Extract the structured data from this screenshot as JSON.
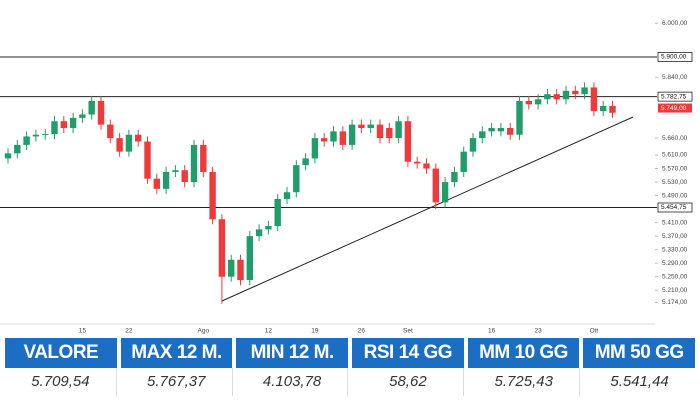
{
  "chart_data": {
    "type": "candlestick",
    "categories": [
      null,
      null,
      null,
      null,
      null,
      null,
      null,
      null,
      "15",
      null,
      null,
      null,
      null,
      "22",
      null,
      null,
      null,
      null,
      null,
      null,
      null,
      "Ago",
      null,
      null,
      null,
      null,
      null,
      null,
      "12",
      null,
      null,
      null,
      null,
      "19",
      null,
      null,
      null,
      null,
      "26",
      null,
      null,
      null,
      null,
      "Set",
      null,
      null,
      null,
      null,
      null,
      null,
      null,
      null,
      "16",
      null,
      null,
      null,
      null,
      "23",
      null,
      null,
      null,
      null,
      null,
      "Ott",
      null,
      null
    ],
    "open": [
      5600,
      5615,
      5640,
      5665,
      5670,
      5672,
      5710,
      5690,
      5720,
      5730,
      5770,
      5700,
      5660,
      5620,
      5670,
      5650,
      5540,
      5510,
      5560,
      5565,
      5530,
      5640,
      5560,
      5420,
      5250,
      5300,
      5240,
      5370,
      5390,
      5400,
      5480,
      5500,
      5580,
      5600,
      5660,
      5650,
      5680,
      5640,
      5700,
      5690,
      5700,
      5690,
      5660,
      5710,
      5590,
      5585,
      5570,
      5470,
      5530,
      5560,
      5620,
      5660,
      5680,
      5680,
      5690,
      5670,
      5770,
      5760,
      5775,
      5790,
      5775,
      5800,
      5790,
      5810,
      5740,
      5755
    ],
    "high": [
      5630,
      5655,
      5680,
      5685,
      5687,
      5725,
      5725,
      5735,
      5745,
      5785,
      5785,
      5715,
      5675,
      5685,
      5685,
      5665,
      5555,
      5575,
      5580,
      5580,
      5655,
      5655,
      5575,
      5435,
      5315,
      5315,
      5385,
      5405,
      5415,
      5495,
      5515,
      5595,
      5615,
      5675,
      5675,
      5695,
      5695,
      5715,
      5715,
      5715,
      5715,
      5705,
      5725,
      5725,
      5605,
      5600,
      5585,
      5545,
      5575,
      5635,
      5675,
      5695,
      5705,
      5705,
      5705,
      5785,
      5785,
      5790,
      5805,
      5805,
      5815,
      5815,
      5825,
      5825,
      5770,
      5770
    ],
    "low": [
      5585,
      5600,
      5625,
      5650,
      5655,
      5657,
      5675,
      5675,
      5705,
      5715,
      5685,
      5645,
      5605,
      5605,
      5635,
      5525,
      5495,
      5495,
      5545,
      5515,
      5515,
      5545,
      5405,
      5170,
      5235,
      5225,
      5225,
      5355,
      5375,
      5385,
      5465,
      5485,
      5565,
      5585,
      5635,
      5635,
      5625,
      5625,
      5675,
      5675,
      5645,
      5645,
      5645,
      5575,
      5570,
      5555,
      5450,
      5455,
      5515,
      5545,
      5605,
      5645,
      5665,
      5665,
      5655,
      5655,
      5745,
      5745,
      5760,
      5760,
      5760,
      5775,
      5775,
      5725,
      5725,
      5720
    ],
    "close": [
      5615,
      5640,
      5665,
      5670,
      5672,
      5710,
      5690,
      5720,
      5730,
      5770,
      5700,
      5660,
      5620,
      5670,
      5650,
      5540,
      5510,
      5560,
      5565,
      5530,
      5640,
      5560,
      5420,
      5250,
      5300,
      5240,
      5370,
      5390,
      5400,
      5480,
      5500,
      5580,
      5600,
      5660,
      5650,
      5680,
      5640,
      5700,
      5690,
      5700,
      5660,
      5660,
      5710,
      5590,
      5585,
      5570,
      5470,
      5530,
      5560,
      5620,
      5660,
      5680,
      5690,
      5690,
      5670,
      5770,
      5760,
      5775,
      5790,
      5775,
      5800,
      5790,
      5810,
      5740,
      5755,
      5735
    ],
    "up_color": "#1f9d6b",
    "down_color": "#ee3a3a",
    "ylim": [
      5116,
      6045
    ],
    "yticks": [
      {
        "value": 6000,
        "label": "6.000,00"
      },
      {
        "value": 5840,
        "label": "5.840,00"
      },
      {
        "value": 5660,
        "label": "5.660,00"
      },
      {
        "value": 5610,
        "label": "5.610,00"
      },
      {
        "value": 5570,
        "label": "5.570,00"
      },
      {
        "value": 5530,
        "label": "5.530,00"
      },
      {
        "value": 5490,
        "label": "5.490,00"
      },
      {
        "value": 5410,
        "label": "5.410,00"
      },
      {
        "value": 5370,
        "label": "5.370,00"
      },
      {
        "value": 5330,
        "label": "5.330,00"
      },
      {
        "value": 5290,
        "label": "5.290,00"
      },
      {
        "value": 5250,
        "label": "5.250,00"
      },
      {
        "value": 5210,
        "label": "5.210,00"
      },
      {
        "value": 5174,
        "label": "5.174,00"
      }
    ],
    "levels": [
      {
        "value": 5900,
        "label": "5.900,00"
      },
      {
        "value": 5782.75,
        "label": "5.782,75"
      },
      {
        "value": 5454.75,
        "label": "5.454,75"
      }
    ],
    "price_label": {
      "value": 5749,
      "label": "5.749,00"
    }
  },
  "table": {
    "header": [
      "VALORE",
      "MAX 12 M.",
      "MIN 12 M.",
      "RSI 14 GG",
      "MM 10 GG",
      "MM 50 GG"
    ],
    "rows": [
      [
        "5.709,54",
        "5.767,37",
        "4.103,78",
        "58,62",
        "5.725,43",
        "5.541,44"
      ]
    ]
  }
}
